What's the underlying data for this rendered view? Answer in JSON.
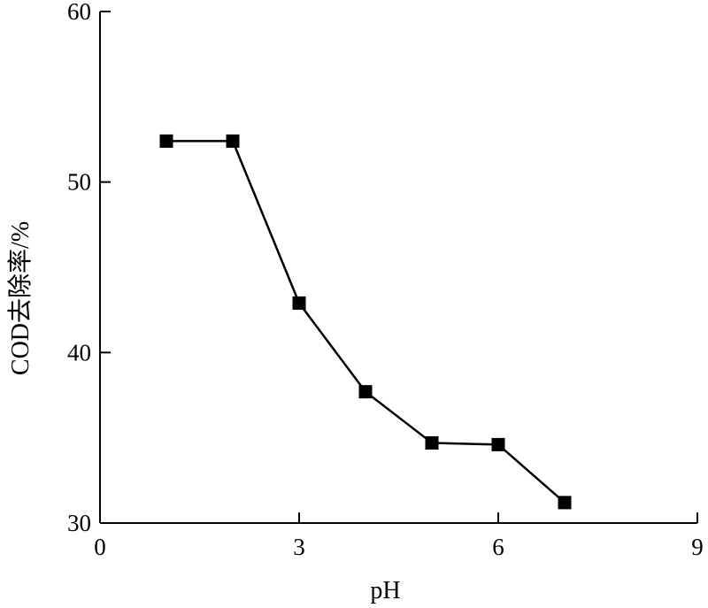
{
  "chart_data": {
    "type": "line",
    "title": "",
    "xlabel": "pH",
    "ylabel": "COD去除率/%",
    "xlim": [
      0,
      9
    ],
    "ylim": [
      30,
      60
    ],
    "x_ticks": [
      0,
      3,
      6,
      9
    ],
    "y_ticks": [
      30,
      40,
      50,
      60
    ],
    "grid": false,
    "legend": "none",
    "series": [
      {
        "marker": "square",
        "color": "#000000",
        "x": [
          1,
          2,
          3,
          4,
          5,
          6,
          7
        ],
        "y": [
          52.4,
          52.4,
          42.9,
          37.7,
          34.7,
          34.6,
          31.2
        ]
      }
    ]
  }
}
